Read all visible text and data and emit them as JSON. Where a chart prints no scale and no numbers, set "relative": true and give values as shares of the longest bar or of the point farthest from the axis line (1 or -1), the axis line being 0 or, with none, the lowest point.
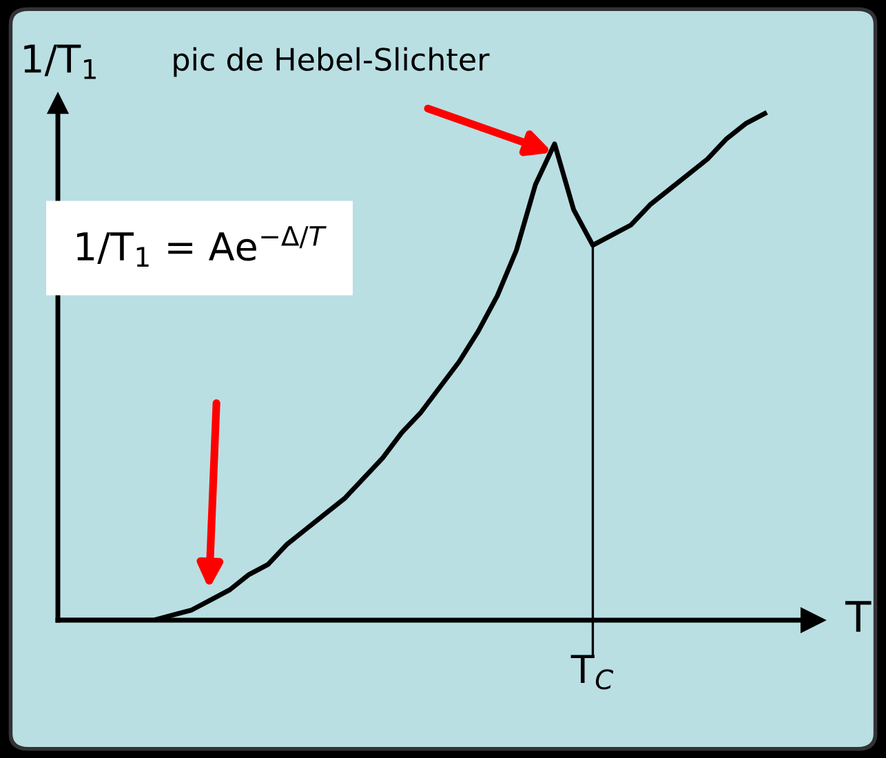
{
  "chart_data": {
    "type": "line",
    "relative": true,
    "xlabel": "T",
    "ylabel": "1/T$_{1}$",
    "categories": [
      null,
      null,
      null,
      null,
      null,
      null,
      null,
      null,
      null,
      null,
      null,
      null,
      null,
      null,
      null,
      null,
      null,
      null,
      null,
      null,
      null,
      null,
      null,
      null,
      null,
      null,
      null,
      null,
      null,
      null,
      null,
      null,
      null,
      null,
      null,
      null,
      null,
      null
    ],
    "series": [
      {
        "color": "#000000",
        "values": [
          0,
          0,
          0,
          0,
          0,
          0,
          0.01,
          0.02,
          0.04,
          0.06,
          0.09,
          0.11,
          0.15,
          0.18,
          0.21,
          0.24,
          0.28,
          0.32,
          0.37,
          0.41,
          0.46,
          0.51,
          0.57,
          0.64,
          0.73,
          0.86,
          0.94,
          0.81,
          0.74,
          0.76,
          0.78,
          0.82,
          0.85,
          0.88,
          0.91,
          0.95,
          0.98,
          1.0
        ]
      }
    ],
    "annotations": [
      "pic de Hebel-Slichter",
      "1/T$_{1}$ = Ae$^{−Δ/T}$",
      {
        "text": "T$_{C}$",
        "y": 0.74
      }
    ],
    "marker": "none",
    "line_style": "solid"
  }
}
